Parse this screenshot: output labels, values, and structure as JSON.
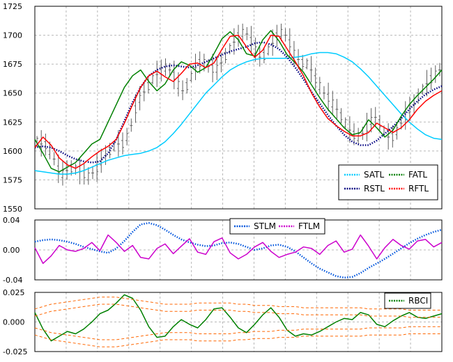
{
  "chart_data": [
    {
      "type": "line",
      "panel": "price",
      "ylim": [
        1550,
        1725
      ],
      "yticks": [
        1550,
        1575,
        1600,
        1625,
        1650,
        1675,
        1700,
        1725
      ],
      "x_range": [
        0,
        100
      ],
      "grid": true,
      "legend_position": "bottom-right",
      "candles_series": "price-bars",
      "price_bars": [
        1608,
        1606,
        1605,
        1600,
        1593,
        1584,
        1580,
        1583,
        1585,
        1584,
        1582,
        1580,
        1578,
        1581,
        1585,
        1591,
        1596,
        1600,
        1604,
        1606,
        1606,
        1612,
        1622,
        1636,
        1645,
        1651,
        1656,
        1662,
        1666,
        1669,
        1672,
        1670,
        1665,
        1657,
        1652,
        1656,
        1664,
        1672,
        1676,
        1676,
        1673,
        1671,
        1671,
        1676,
        1682,
        1688,
        1694,
        1699,
        1702,
        1701,
        1695,
        1687,
        1681,
        1682,
        1687,
        1693,
        1699,
        1702,
        1700,
        1693,
        1684,
        1679,
        1676,
        1675,
        1670,
        1662,
        1656,
        1650,
        1646,
        1641,
        1636,
        1630,
        1624,
        1618,
        1614,
        1612,
        1615,
        1620,
        1626,
        1629,
        1624,
        1617,
        1612,
        1612,
        1617,
        1624,
        1630,
        1636,
        1640,
        1647,
        1653,
        1658,
        1662,
        1666,
        1670
      ],
      "series": [
        {
          "name": "SATL",
          "color": "#00ccff",
          "values": [
            1583,
            1582,
            1581,
            1580,
            1580,
            1581,
            1583,
            1586,
            1589,
            1592,
            1594,
            1596,
            1597,
            1598,
            1600,
            1603,
            1608,
            1615,
            1623,
            1632,
            1641,
            1650,
            1657,
            1664,
            1670,
            1674,
            1677,
            1679,
            1680,
            1680,
            1680,
            1680,
            1681,
            1682,
            1684,
            1685,
            1685,
            1684,
            1681,
            1677,
            1671,
            1664,
            1656,
            1648,
            1640,
            1632,
            1625,
            1619,
            1614,
            1611,
            1610
          ]
        },
        {
          "name": "RSTL",
          "color": "#000080",
          "values": [
            1603,
            1604,
            1603,
            1600,
            1596,
            1593,
            1591,
            1590,
            1591,
            1598,
            1610,
            1626,
            1642,
            1655,
            1665,
            1670,
            1673,
            1674,
            1673,
            1672,
            1674,
            1677,
            1680,
            1683,
            1686,
            1688,
            1690,
            1693,
            1694,
            1692,
            1688,
            1681,
            1672,
            1662,
            1651,
            1641,
            1631,
            1622,
            1614,
            1608,
            1605,
            1605,
            1609,
            1615,
            1621,
            1628,
            1636,
            1643,
            1649,
            1653,
            1656
          ]
        },
        {
          "name": "FATL",
          "color": "#008000",
          "values": [
            1610,
            1598,
            1585,
            1582,
            1586,
            1590,
            1598,
            1606,
            1610,
            1625,
            1640,
            1655,
            1665,
            1670,
            1660,
            1652,
            1658,
            1670,
            1677,
            1674,
            1668,
            1672,
            1684,
            1697,
            1703,
            1696,
            1684,
            1682,
            1696,
            1704,
            1695,
            1683,
            1676,
            1668,
            1657,
            1646,
            1636,
            1628,
            1620,
            1614,
            1616,
            1627,
            1620,
            1612,
            1618,
            1630,
            1640,
            1648,
            1655,
            1662,
            1670
          ]
        },
        {
          "name": "RFTL",
          "color": "#ff0000",
          "values": [
            1603,
            1612,
            1605,
            1594,
            1588,
            1585,
            1589,
            1595,
            1600,
            1604,
            1610,
            1624,
            1640,
            1655,
            1665,
            1669,
            1664,
            1660,
            1667,
            1675,
            1676,
            1672,
            1676,
            1688,
            1699,
            1700,
            1690,
            1681,
            1687,
            1700,
            1699,
            1688,
            1677,
            1665,
            1650,
            1638,
            1628,
            1622,
            1617,
            1613,
            1613,
            1616,
            1624,
            1620,
            1616,
            1620,
            1627,
            1636,
            1643,
            1648,
            1652
          ]
        }
      ],
      "legend": [
        "SATL",
        "FATL",
        "RSTL",
        "RFTL"
      ]
    },
    {
      "type": "line",
      "panel": "oscillator",
      "ylim": [
        -0.04,
        0.04
      ],
      "yticks": [
        -0.04,
        0.0,
        0.04
      ],
      "ytick_labels": [
        "-0.04",
        "0.00",
        "0.04"
      ],
      "x_range": [
        0,
        100
      ],
      "grid": true,
      "legend_position": "top-right",
      "series": [
        {
          "name": "STLM",
          "color": "#0055dd",
          "values": [
            0.011,
            0.013,
            0.014,
            0.013,
            0.011,
            0.008,
            0.004,
            0.001,
            -0.002,
            -0.004,
            0.002,
            0.012,
            0.024,
            0.034,
            0.036,
            0.033,
            0.027,
            0.02,
            0.014,
            0.01,
            0.007,
            0.005,
            0.006,
            0.009,
            0.01,
            0.008,
            0.004,
            0.0,
            0.002,
            0.006,
            0.007,
            0.004,
            -0.002,
            -0.01,
            -0.018,
            -0.025,
            -0.03,
            -0.035,
            -0.037,
            -0.036,
            -0.031,
            -0.024,
            -0.018,
            -0.012,
            -0.005,
            0.002,
            0.009,
            0.015,
            0.02,
            0.024,
            0.027
          ]
        },
        {
          "name": "FTLM",
          "color": "#cc00cc",
          "values": [
            0.003,
            -0.018,
            -0.008,
            0.006,
            0.0,
            -0.002,
            0.002,
            0.01,
            -0.001,
            0.02,
            0.01,
            -0.002,
            0.006,
            -0.01,
            -0.012,
            0.002,
            0.008,
            -0.005,
            0.005,
            0.015,
            -0.003,
            -0.006,
            0.011,
            0.016,
            -0.004,
            -0.012,
            -0.006,
            0.004,
            0.01,
            -0.002,
            -0.01,
            -0.006,
            -0.003,
            0.004,
            0.002,
            -0.006,
            0.006,
            0.012,
            -0.003,
            0.001,
            0.02,
            0.005,
            -0.012,
            0.003,
            0.014,
            0.006,
            0.001,
            0.012,
            0.014,
            0.004,
            0.01
          ]
        }
      ],
      "legend": [
        "STLM",
        "FTLM"
      ]
    },
    {
      "type": "line",
      "panel": "rbci",
      "ylim": [
        -0.025,
        0.025
      ],
      "yticks": [
        -0.025,
        0.0,
        0.025
      ],
      "ytick_labels": [
        "-0.025",
        "0.000",
        "0.025"
      ],
      "x_range": [
        0,
        100
      ],
      "grid": true,
      "legend_position": "top-right",
      "series": [
        {
          "name": "RBCI",
          "color": "#008000",
          "values": [
            0.008,
            -0.006,
            -0.016,
            -0.012,
            -0.008,
            -0.01,
            -0.006,
            0.0,
            0.007,
            0.01,
            0.016,
            0.023,
            0.02,
            0.01,
            -0.004,
            -0.013,
            -0.012,
            -0.004,
            0.002,
            -0.002,
            -0.005,
            0.002,
            0.011,
            0.012,
            0.004,
            -0.005,
            -0.009,
            -0.002,
            0.006,
            0.012,
            0.004,
            -0.007,
            -0.012,
            -0.01,
            -0.011,
            -0.008,
            -0.004,
            0.0,
            0.003,
            0.002,
            0.008,
            0.006,
            -0.002,
            -0.004,
            0.001,
            0.005,
            0.008,
            0.004,
            0.003,
            0.005,
            0.007
          ]
        },
        {
          "name": "band-upper-2",
          "color": "#ff6600",
          "values": [
            0.011,
            0.013,
            0.015,
            0.016,
            0.017,
            0.018,
            0.019,
            0.02,
            0.021,
            0.021,
            0.021,
            0.02,
            0.019,
            0.018,
            0.017,
            0.016,
            0.015,
            0.015,
            0.015,
            0.015,
            0.016,
            0.016,
            0.016,
            0.016,
            0.016,
            0.015,
            0.015,
            0.014,
            0.014,
            0.014,
            0.013,
            0.013,
            0.013,
            0.012,
            0.012,
            0.012,
            0.012,
            0.012,
            0.012,
            0.012,
            0.012,
            0.011,
            0.011,
            0.011,
            0.011,
            0.011,
            0.01,
            0.01,
            0.01,
            0.01,
            0.01
          ]
        },
        {
          "name": "band-upper-1",
          "color": "#ff6600",
          "values": [
            0.005,
            0.007,
            0.009,
            0.01,
            0.011,
            0.012,
            0.013,
            0.014,
            0.015,
            0.015,
            0.015,
            0.014,
            0.013,
            0.012,
            0.011,
            0.01,
            0.009,
            0.009,
            0.009,
            0.009,
            0.01,
            0.01,
            0.01,
            0.01,
            0.01,
            0.009,
            0.009,
            0.008,
            0.008,
            0.008,
            0.007,
            0.007,
            0.007,
            0.006,
            0.006,
            0.006,
            0.006,
            0.006,
            0.006,
            0.006,
            0.006,
            0.005,
            0.005,
            0.005,
            0.005,
            0.005,
            0.004,
            0.004,
            0.004,
            0.004,
            0.004
          ]
        },
        {
          "name": "band-lower-1",
          "color": "#ff6600",
          "values": [
            -0.005,
            -0.007,
            -0.009,
            -0.01,
            -0.011,
            -0.012,
            -0.013,
            -0.014,
            -0.015,
            -0.015,
            -0.015,
            -0.014,
            -0.013,
            -0.012,
            -0.011,
            -0.01,
            -0.009,
            -0.009,
            -0.009,
            -0.009,
            -0.01,
            -0.01,
            -0.01,
            -0.01,
            -0.01,
            -0.009,
            -0.009,
            -0.008,
            -0.008,
            -0.008,
            -0.007,
            -0.007,
            -0.007,
            -0.006,
            -0.006,
            -0.006,
            -0.006,
            -0.006,
            -0.006,
            -0.006,
            -0.006,
            -0.005,
            -0.005,
            -0.005,
            -0.005,
            -0.005,
            -0.004,
            -0.004,
            -0.004,
            -0.004,
            -0.004
          ]
        },
        {
          "name": "band-lower-2",
          "color": "#ff6600",
          "values": [
            -0.011,
            -0.013,
            -0.015,
            -0.016,
            -0.017,
            -0.018,
            -0.019,
            -0.02,
            -0.021,
            -0.021,
            -0.021,
            -0.02,
            -0.019,
            -0.018,
            -0.017,
            -0.016,
            -0.015,
            -0.015,
            -0.015,
            -0.015,
            -0.016,
            -0.016,
            -0.016,
            -0.016,
            -0.016,
            -0.015,
            -0.015,
            -0.014,
            -0.014,
            -0.014,
            -0.013,
            -0.013,
            -0.013,
            -0.012,
            -0.012,
            -0.012,
            -0.012,
            -0.012,
            -0.012,
            -0.012,
            -0.012,
            -0.011,
            -0.011,
            -0.011,
            -0.011,
            -0.011,
            -0.01,
            -0.01,
            -0.01,
            -0.01,
            -0.01
          ]
        }
      ],
      "legend": [
        "RBCI"
      ]
    }
  ]
}
